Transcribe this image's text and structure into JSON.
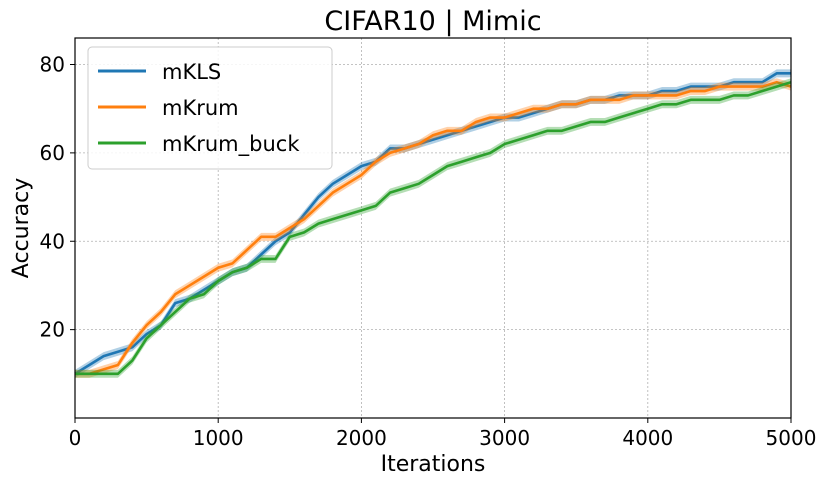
{
  "chart_data": {
    "type": "line",
    "title": "CIFAR10 | Mimic",
    "xlabel": "Iterations",
    "ylabel": "Accuracy",
    "xlim": [
      0,
      5000
    ],
    "ylim": [
      0,
      86
    ],
    "xticks": [
      0,
      1000,
      2000,
      3000,
      4000,
      5000
    ],
    "yticks": [
      20,
      40,
      60,
      80
    ],
    "grid": true,
    "legend_position": "top-left",
    "shaded_band": true,
    "series": [
      {
        "name": "mKLS",
        "color": "#1f77b4",
        "points": [
          [
            0,
            10
          ],
          [
            100,
            12
          ],
          [
            200,
            14
          ],
          [
            300,
            15
          ],
          [
            400,
            16
          ],
          [
            500,
            19
          ],
          [
            600,
            21
          ],
          [
            700,
            26
          ],
          [
            800,
            27
          ],
          [
            900,
            29
          ],
          [
            1000,
            31
          ],
          [
            1100,
            33
          ],
          [
            1200,
            34
          ],
          [
            1300,
            37
          ],
          [
            1400,
            40
          ],
          [
            1500,
            42
          ],
          [
            1600,
            46
          ],
          [
            1700,
            50
          ],
          [
            1800,
            53
          ],
          [
            1900,
            55
          ],
          [
            2000,
            57
          ],
          [
            2100,
            58
          ],
          [
            2200,
            61
          ],
          [
            2300,
            61
          ],
          [
            2400,
            62
          ],
          [
            2500,
            63
          ],
          [
            2600,
            64
          ],
          [
            2700,
            65
          ],
          [
            2800,
            66
          ],
          [
            2900,
            67
          ],
          [
            3000,
            68
          ],
          [
            3100,
            68
          ],
          [
            3200,
            69
          ],
          [
            3300,
            70
          ],
          [
            3400,
            71
          ],
          [
            3500,
            71
          ],
          [
            3600,
            72
          ],
          [
            3700,
            72
          ],
          [
            3800,
            73
          ],
          [
            3900,
            73
          ],
          [
            4000,
            73
          ],
          [
            4100,
            74
          ],
          [
            4200,
            74
          ],
          [
            4300,
            75
          ],
          [
            4400,
            75
          ],
          [
            4500,
            75
          ],
          [
            4600,
            76
          ],
          [
            4700,
            76
          ],
          [
            4800,
            76
          ],
          [
            4900,
            78
          ],
          [
            5000,
            78
          ]
        ]
      },
      {
        "name": "mKrum",
        "color": "#ff7f0e",
        "points": [
          [
            0,
            10
          ],
          [
            100,
            10
          ],
          [
            200,
            11
          ],
          [
            300,
            12
          ],
          [
            400,
            17
          ],
          [
            500,
            21
          ],
          [
            600,
            24
          ],
          [
            700,
            28
          ],
          [
            800,
            30
          ],
          [
            900,
            32
          ],
          [
            1000,
            34
          ],
          [
            1100,
            35
          ],
          [
            1200,
            38
          ],
          [
            1300,
            41
          ],
          [
            1400,
            41
          ],
          [
            1500,
            43
          ],
          [
            1600,
            45
          ],
          [
            1700,
            48
          ],
          [
            1800,
            51
          ],
          [
            1900,
            53
          ],
          [
            2000,
            55
          ],
          [
            2100,
            58
          ],
          [
            2200,
            60
          ],
          [
            2300,
            61
          ],
          [
            2400,
            62
          ],
          [
            2500,
            64
          ],
          [
            2600,
            65
          ],
          [
            2700,
            65
          ],
          [
            2800,
            67
          ],
          [
            2900,
            68
          ],
          [
            3000,
            68
          ],
          [
            3100,
            69
          ],
          [
            3200,
            70
          ],
          [
            3300,
            70
          ],
          [
            3400,
            71
          ],
          [
            3500,
            71
          ],
          [
            3600,
            72
          ],
          [
            3700,
            72
          ],
          [
            3800,
            72
          ],
          [
            3900,
            73
          ],
          [
            4000,
            73
          ],
          [
            4100,
            73
          ],
          [
            4200,
            73
          ],
          [
            4300,
            74
          ],
          [
            4400,
            74
          ],
          [
            4500,
            75
          ],
          [
            4600,
            75
          ],
          [
            4700,
            75
          ],
          [
            4800,
            75
          ],
          [
            4900,
            76
          ],
          [
            5000,
            75
          ]
        ]
      },
      {
        "name": "mKrum_buck",
        "color": "#2ca02c",
        "points": [
          [
            0,
            10
          ],
          [
            100,
            10
          ],
          [
            200,
            10
          ],
          [
            300,
            10
          ],
          [
            400,
            13
          ],
          [
            500,
            18
          ],
          [
            600,
            21
          ],
          [
            700,
            24
          ],
          [
            800,
            27
          ],
          [
            900,
            28
          ],
          [
            1000,
            31
          ],
          [
            1100,
            33
          ],
          [
            1200,
            34
          ],
          [
            1300,
            36
          ],
          [
            1400,
            36
          ],
          [
            1500,
            41
          ],
          [
            1600,
            42
          ],
          [
            1700,
            44
          ],
          [
            1800,
            45
          ],
          [
            1900,
            46
          ],
          [
            2000,
            47
          ],
          [
            2100,
            48
          ],
          [
            2200,
            51
          ],
          [
            2300,
            52
          ],
          [
            2400,
            53
          ],
          [
            2500,
            55
          ],
          [
            2600,
            57
          ],
          [
            2700,
            58
          ],
          [
            2800,
            59
          ],
          [
            2900,
            60
          ],
          [
            3000,
            62
          ],
          [
            3100,
            63
          ],
          [
            3200,
            64
          ],
          [
            3300,
            65
          ],
          [
            3400,
            65
          ],
          [
            3500,
            66
          ],
          [
            3600,
            67
          ],
          [
            3700,
            67
          ],
          [
            3800,
            68
          ],
          [
            3900,
            69
          ],
          [
            4000,
            70
          ],
          [
            4100,
            71
          ],
          [
            4200,
            71
          ],
          [
            4300,
            72
          ],
          [
            4400,
            72
          ],
          [
            4500,
            72
          ],
          [
            4600,
            73
          ],
          [
            4700,
            73
          ],
          [
            4800,
            74
          ],
          [
            4900,
            75
          ],
          [
            5000,
            76
          ]
        ]
      }
    ]
  }
}
